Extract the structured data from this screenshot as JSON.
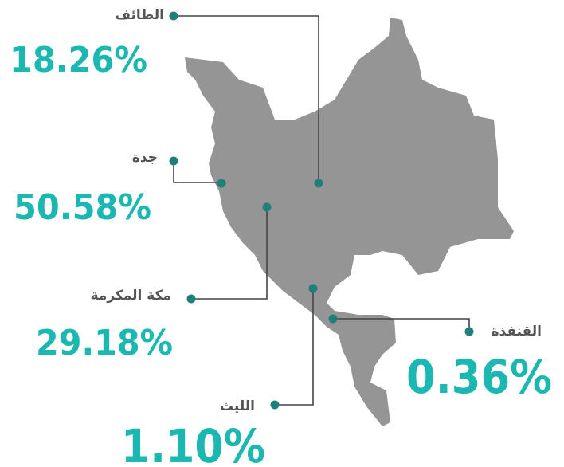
{
  "regions": [
    {
      "name": "الطائف",
      "share": "18.26%"
    },
    {
      "name": "جدة",
      "share": "50.58%"
    },
    {
      "name": "مكة المكرمة",
      "share": "29.18%"
    },
    {
      "name": "الليث",
      "share": "1.10%"
    },
    {
      "name": "القنفذة",
      "share": "0.36%"
    }
  ]
}
